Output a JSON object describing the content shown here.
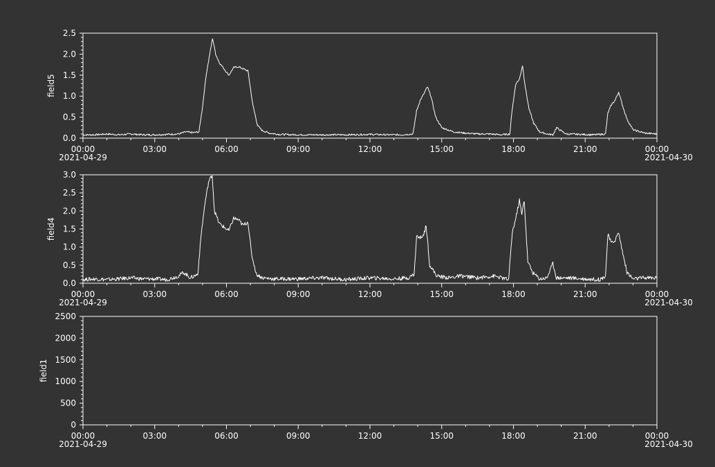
{
  "colors": {
    "background": "#333333",
    "axis": "#ffffff",
    "line": "#ffffff"
  },
  "x_axis": {
    "ticks": [
      "00:00",
      "03:00",
      "06:00",
      "09:00",
      "12:00",
      "15:00",
      "18:00",
      "21:00",
      "00:00"
    ],
    "start_date": "2021-04-29",
    "end_date": "2021-04-30"
  },
  "chart_data": [
    {
      "type": "line",
      "ylabel": "field5",
      "xlim": [
        0,
        24
      ],
      "ylim": [
        0,
        2.5
      ],
      "yticks": [
        "0.0",
        "0.5",
        "1.0",
        "1.5",
        "2.0",
        "2.5"
      ],
      "grid": false,
      "series": [
        {
          "x": [
            0,
            0.5,
            1,
            1.5,
            2,
            2.5,
            3,
            3.5,
            4,
            4.3,
            4.6,
            4.85,
            5.0,
            5.15,
            5.3,
            5.42,
            5.55,
            5.7,
            5.9,
            6.1,
            6.3,
            6.5,
            6.7,
            6.9,
            7.1,
            7.3,
            7.5,
            7.8,
            8.2,
            9,
            10,
            11,
            12,
            12.8,
            13.3,
            13.8,
            13.95,
            14.1,
            14.25,
            14.4,
            14.55,
            14.75,
            15,
            15.5,
            16,
            16.5,
            17,
            17.5,
            17.85,
            17.95,
            18.1,
            18.25,
            18.38,
            18.5,
            18.65,
            18.85,
            19.1,
            19.4,
            19.65,
            19.8,
            20.2,
            20.8,
            21.4,
            21.85,
            21.95,
            22.1,
            22.25,
            22.4,
            22.55,
            22.75,
            23,
            23.5,
            24
          ],
          "y": [
            0.08,
            0.08,
            0.1,
            0.08,
            0.1,
            0.08,
            0.08,
            0.09,
            0.1,
            0.15,
            0.13,
            0.15,
            0.75,
            1.5,
            2.0,
            2.38,
            2.0,
            1.8,
            1.65,
            1.5,
            1.68,
            1.7,
            1.65,
            1.6,
            0.8,
            0.3,
            0.18,
            0.12,
            0.09,
            0.08,
            0.08,
            0.08,
            0.09,
            0.08,
            0.08,
            0.1,
            0.65,
            0.9,
            1.05,
            1.22,
            1.0,
            0.5,
            0.25,
            0.15,
            0.12,
            0.1,
            0.1,
            0.08,
            0.1,
            0.7,
            1.3,
            1.4,
            1.73,
            1.2,
            0.7,
            0.35,
            0.15,
            0.1,
            0.08,
            0.25,
            0.1,
            0.09,
            0.08,
            0.1,
            0.6,
            0.8,
            0.9,
            1.1,
            0.8,
            0.45,
            0.2,
            0.12,
            0.1
          ]
        }
      ]
    },
    {
      "type": "line",
      "ylabel": "field4",
      "xlim": [
        0,
        24
      ],
      "ylim": [
        0,
        3.0
      ],
      "yticks": [
        "0.0",
        "0.5",
        "1.0",
        "1.5",
        "2.0",
        "2.5",
        "3.0"
      ],
      "grid": false,
      "series": [
        {
          "x": [
            0,
            0.5,
            1,
            1.5,
            2,
            2.5,
            3,
            3.5,
            4,
            4.2,
            4.5,
            4.8,
            4.95,
            5.1,
            5.25,
            5.4,
            5.5,
            5.7,
            5.9,
            6.1,
            6.3,
            6.5,
            6.7,
            6.9,
            7.05,
            7.25,
            7.5,
            8,
            9,
            10,
            11,
            12,
            13,
            13.6,
            13.85,
            13.95,
            14.1,
            14.25,
            14.35,
            14.5,
            14.8,
            15.3,
            15.8,
            16.5,
            17.2,
            17.8,
            17.95,
            18.1,
            18.25,
            18.35,
            18.45,
            18.6,
            18.8,
            19.1,
            19.4,
            19.65,
            19.8,
            20.3,
            21,
            21.6,
            21.85,
            21.95,
            22.1,
            22.25,
            22.4,
            22.55,
            22.75,
            23,
            23.5,
            24
          ],
          "y": [
            0.1,
            0.12,
            0.1,
            0.12,
            0.15,
            0.12,
            0.12,
            0.1,
            0.2,
            0.3,
            0.15,
            0.25,
            1.4,
            2.2,
            2.8,
            3.0,
            2.0,
            1.65,
            1.55,
            1.45,
            1.8,
            1.75,
            1.6,
            1.7,
            0.8,
            0.25,
            0.15,
            0.12,
            0.12,
            0.15,
            0.1,
            0.15,
            0.12,
            0.15,
            0.25,
            1.3,
            1.25,
            1.35,
            1.6,
            0.5,
            0.2,
            0.15,
            0.2,
            0.15,
            0.2,
            0.1,
            1.4,
            1.8,
            2.3,
            1.9,
            2.3,
            0.6,
            0.3,
            0.12,
            0.15,
            0.55,
            0.15,
            0.15,
            0.12,
            0.1,
            0.2,
            1.35,
            1.1,
            1.2,
            1.4,
            0.9,
            0.3,
            0.12,
            0.15,
            0.15
          ]
        }
      ]
    },
    {
      "type": "line",
      "ylabel": "field1",
      "xlim": [
        0,
        24
      ],
      "ylim": [
        0,
        2500
      ],
      "yticks": [
        "0",
        "500",
        "1000",
        "1500",
        "2000",
        "2500"
      ],
      "grid": false,
      "series": []
    }
  ]
}
